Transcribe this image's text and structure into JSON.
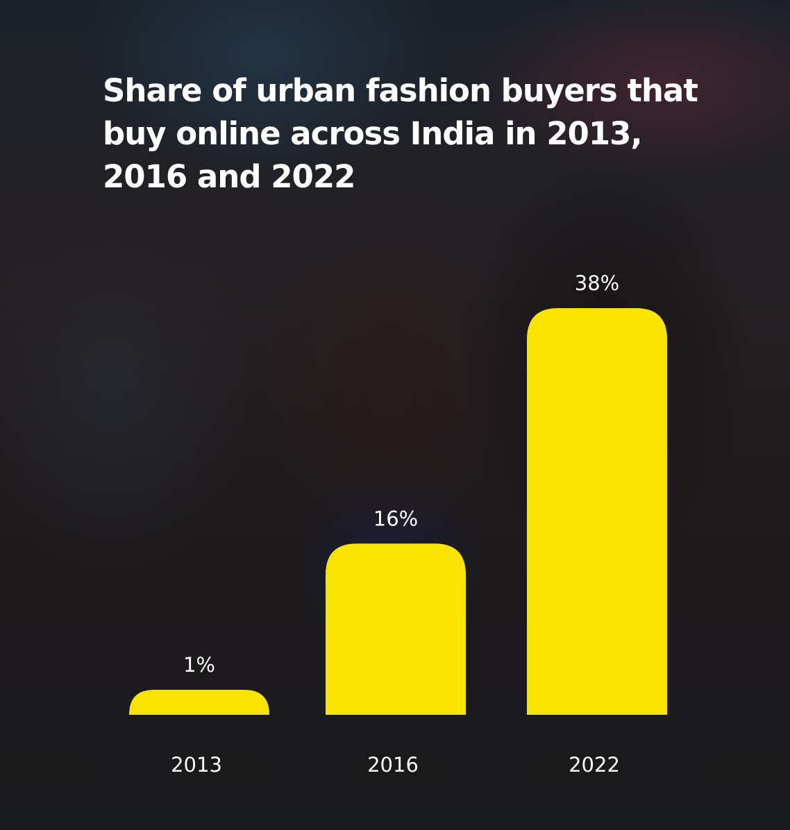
{
  "title": "Share of urban fashion buyers that buy online across India in 2013, 2016 and 2022",
  "chart_data": {
    "type": "bar",
    "categories": [
      "2013",
      "2016",
      "2022"
    ],
    "values": [
      1,
      16,
      38
    ],
    "value_labels": [
      "1%",
      "16%",
      "38%"
    ],
    "ylim": [
      0,
      38
    ],
    "grid": false,
    "bar_color": "#f9e400",
    "text_color": "#ffffff"
  }
}
